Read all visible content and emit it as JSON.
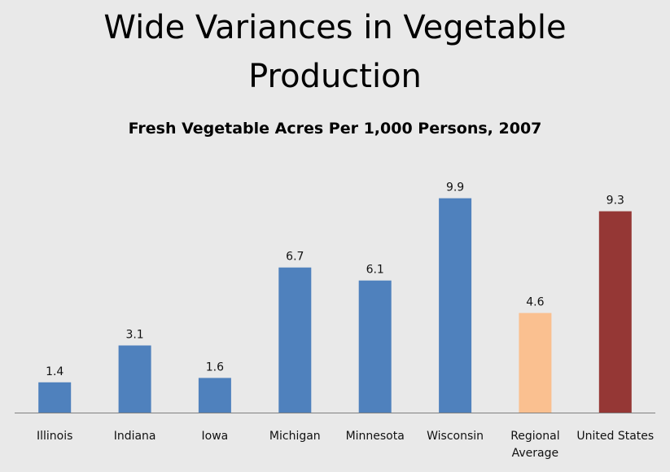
{
  "slide": {
    "title_line1": "Wide Variances in Vegetable",
    "title_line2": "Production"
  },
  "chart_data": {
    "type": "bar",
    "title": "Fresh Vegetable Acres Per 1,000 Persons, 2007",
    "xlabel": "",
    "ylabel": "",
    "ylim": [
      0,
      10.9
    ],
    "grid": false,
    "legend": "none",
    "categories": [
      [
        "Illinois"
      ],
      [
        "Indiana"
      ],
      [
        "Iowa"
      ],
      [
        "Michigan"
      ],
      [
        "Minnesota"
      ],
      [
        "Wisconsin"
      ],
      [
        "Regional",
        "Average"
      ],
      [
        "United States"
      ]
    ],
    "values": [
      1.4,
      3.1,
      1.6,
      6.7,
      6.1,
      9.9,
      4.6,
      9.3
    ],
    "data_labels": [
      "1.4",
      "3.1",
      "1.6",
      "6.7",
      "6.1",
      "9.9",
      "4.6",
      "9.3"
    ],
    "bar_colors": [
      "#4f81bd",
      "#4f81bd",
      "#4f81bd",
      "#4f81bd",
      "#4f81bd",
      "#4f81bd",
      "#fac090",
      "#953735"
    ],
    "axis_color": "#7f7f7f"
  }
}
